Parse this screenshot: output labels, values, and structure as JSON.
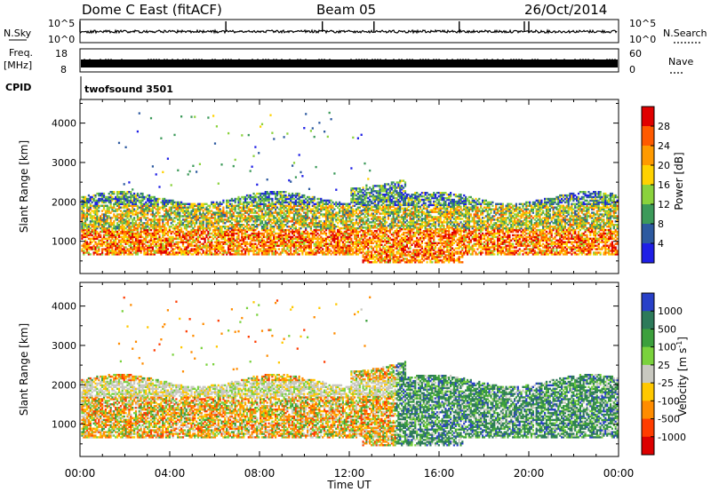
{
  "header": {
    "station": "Dome C East (fitACF)",
    "beam": "Beam 05",
    "date": "26/Oct/2014"
  },
  "params": {
    "nsky_label": "N.Sky",
    "nsky_ticks": [
      "10^5",
      "10^0"
    ],
    "nsearch_label": "N.Search",
    "nsearch_ticks": [
      "10^5",
      "10^0"
    ],
    "freq_label": "Freq.",
    "freq_unit": "[MHz]",
    "freq_ticks": [
      "18",
      "8"
    ],
    "nave_label": "Nave",
    "nave_ticks": [
      "60",
      "0"
    ],
    "cpid_label": "CPID",
    "cpid_value": "twofsound 3501"
  },
  "chart_data": [
    {
      "type": "heatmap",
      "name": "power-panel",
      "ylabel": "Slant Range [km]",
      "ylim": [
        180,
        4600
      ],
      "yticks": [
        "1000",
        "2000",
        "3000",
        "4000"
      ],
      "xlim": [
        0,
        24
      ],
      "colorbar": {
        "label": "Power [dB]",
        "ticks": [
          "28",
          "24",
          "20",
          "16",
          "12",
          "8",
          "4"
        ],
        "colors": [
          "#e00000",
          "#ff5a00",
          "#ff9a00",
          "#ffd200",
          "#8ad23c",
          "#3c9a5a",
          "#2d5aa0",
          "#1f1fe6"
        ]
      }
    },
    {
      "type": "heatmap",
      "name": "velocity-panel",
      "ylabel": "Slant Range [km]",
      "ylim": [
        180,
        4600
      ],
      "yticks": [
        "1000",
        "2000",
        "3000",
        "4000"
      ],
      "xlim": [
        0,
        24
      ],
      "xlabel": "Time UT",
      "xticks": [
        "00:00",
        "04:00",
        "08:00",
        "12:00",
        "16:00",
        "20:00",
        "00:00"
      ],
      "colorbar": {
        "label": "Velocity",
        "unit_base": "[m s",
        "unit_exp": "-1",
        "unit_close": "]",
        "ticks": [
          "1000",
          "500",
          "100",
          "25",
          "-25",
          "-100",
          "-500",
          "-1000"
        ],
        "colors": [
          "#2840c8",
          "#2d7a5a",
          "#3ca03c",
          "#7ad23c",
          "#c8c8c0",
          "#ffc800",
          "#ff8c00",
          "#ff3c00",
          "#dc0000"
        ]
      }
    }
  ]
}
